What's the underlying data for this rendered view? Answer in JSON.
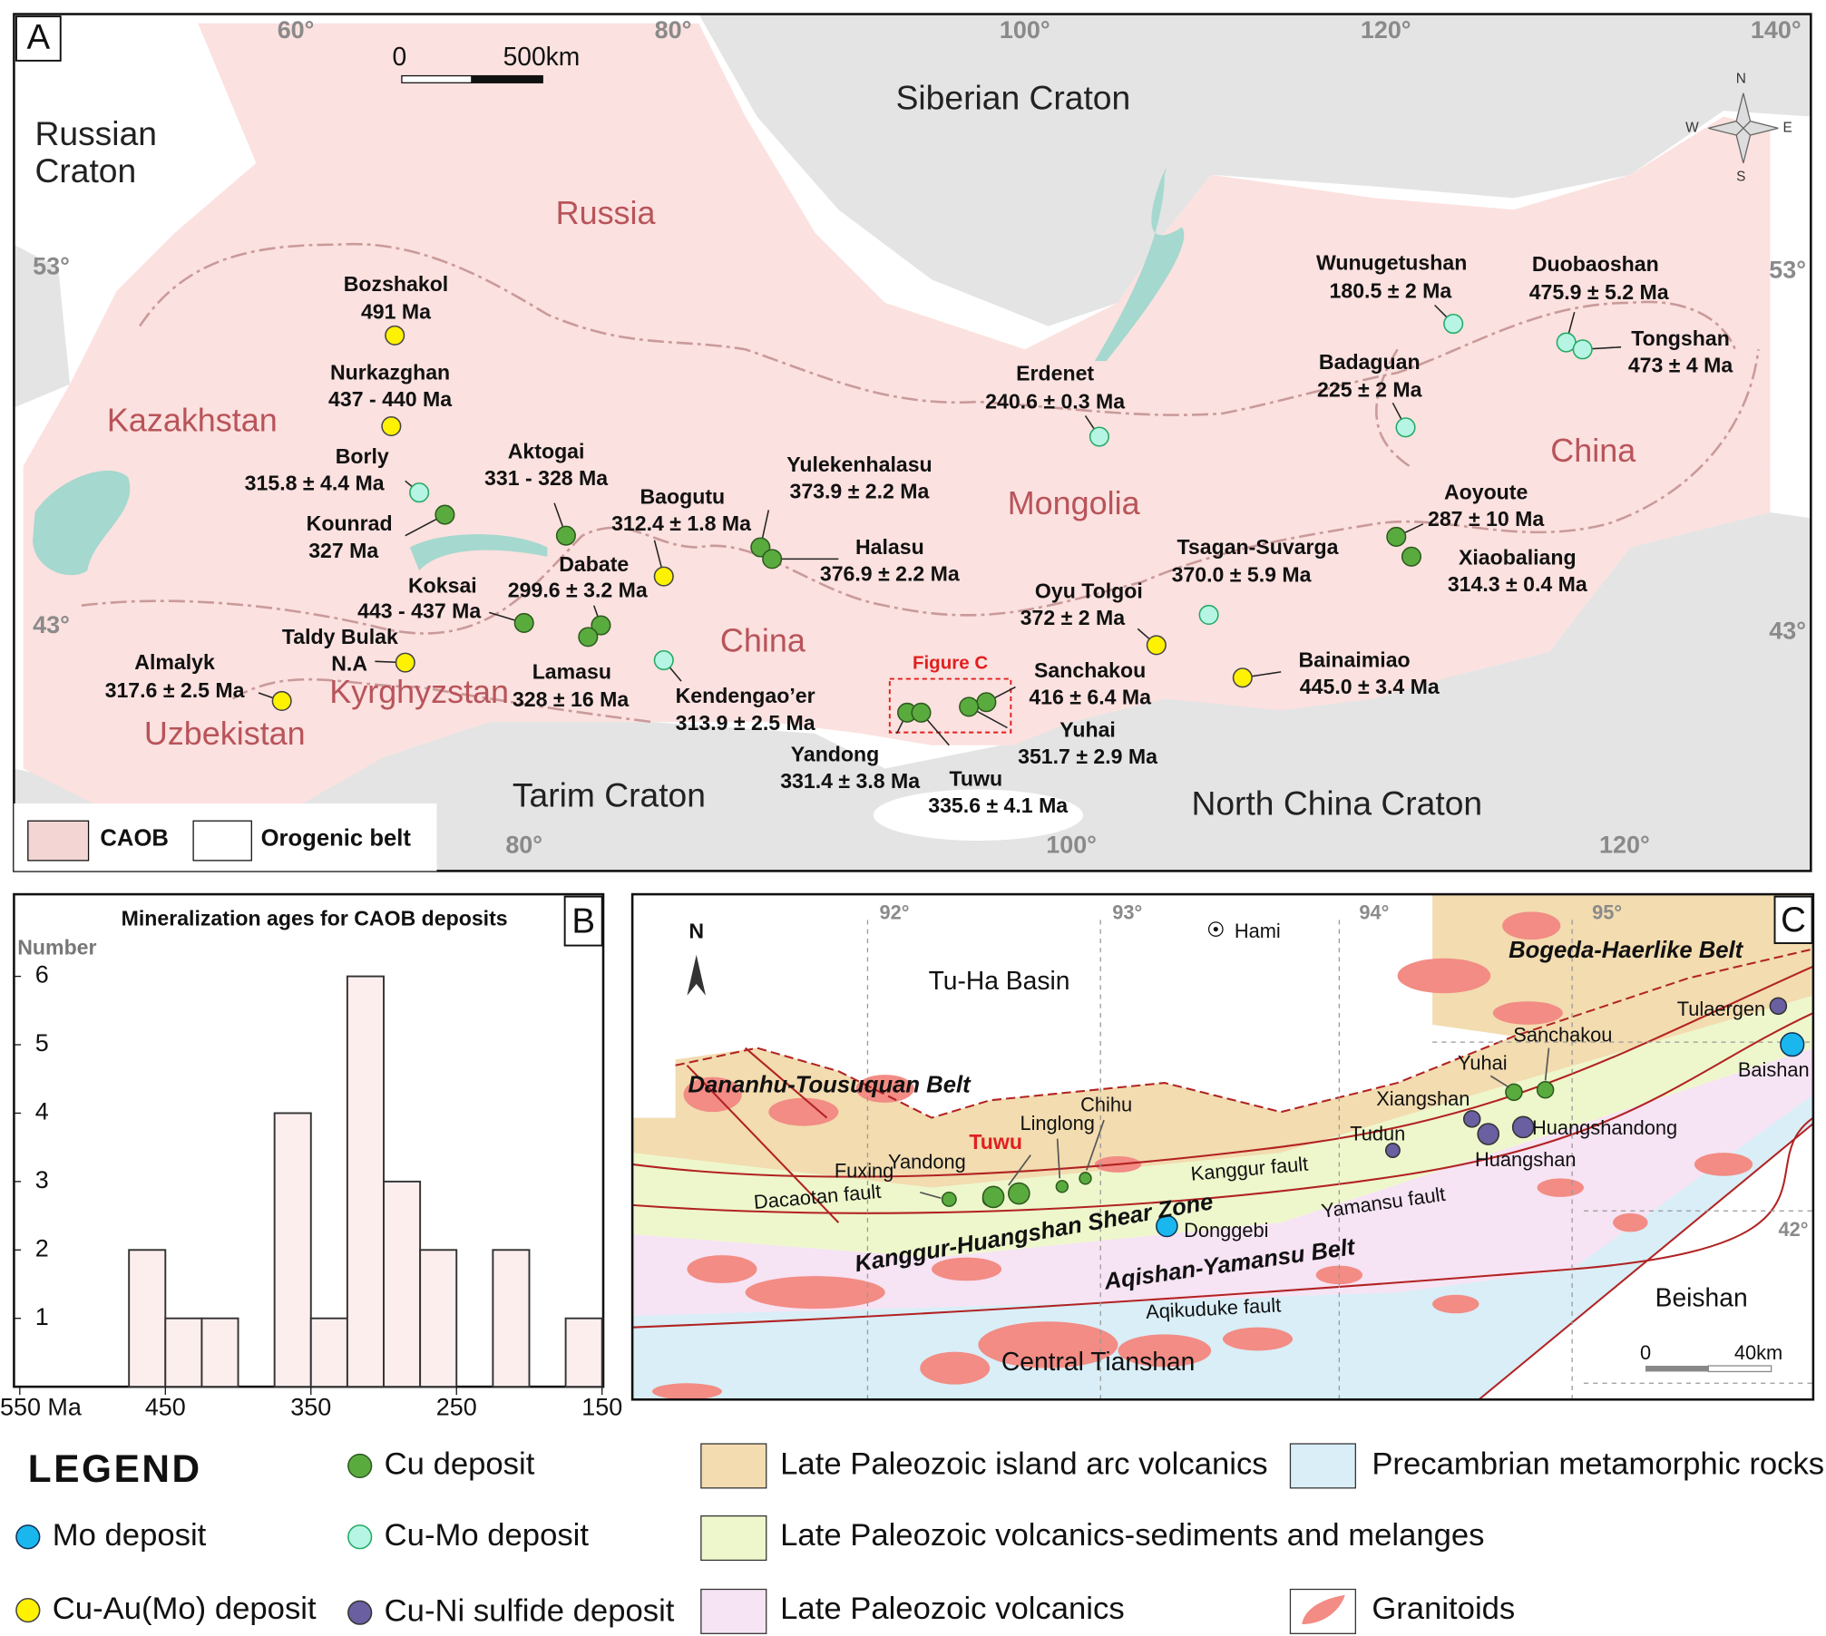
{
  "panel_a": {
    "letter": "A",
    "scale": [
      "0",
      "500km"
    ],
    "lon_top": [
      "60°",
      "80°",
      "100°",
      "120°",
      "140°"
    ],
    "lon_bottom": [
      "80°",
      "100°",
      "120°"
    ],
    "lat_left": [
      "53°",
      "43°"
    ],
    "lat_right": [
      "53°",
      "43°"
    ],
    "compass": [
      "N",
      "W",
      "E",
      "S"
    ],
    "siberian_craton": "Siberian Craton",
    "russian_craton": [
      "Russian",
      "Craton"
    ],
    "regions": [
      "Russia",
      "Kazakhstan",
      "Mongolia",
      "China",
      "China",
      "Kyrghyzstan",
      "Uzbekistan"
    ],
    "cratons": [
      "Tarim Craton",
      "North China Craton"
    ],
    "figure_c": "Figure C",
    "deposits": [
      {
        "name": "Bozshakol",
        "age": "491 Ma"
      },
      {
        "name": "Nurkazghan",
        "age": "437 - 440 Ma"
      },
      {
        "name": "Borly",
        "age": "315.8 ± 4.4 Ma"
      },
      {
        "name": "Kounrad",
        "age": "327 Ma"
      },
      {
        "name": "Aktogai",
        "age": "331 - 328 Ma"
      },
      {
        "name": "Baogutu",
        "age": "312.4 ± 1.8 Ma"
      },
      {
        "name": "Dabate",
        "age": "299.6 ± 3.2 Ma"
      },
      {
        "name": "Koksai",
        "age": "443 - 437 Ma"
      },
      {
        "name": "Taldy Bulak",
        "age": "N.A"
      },
      {
        "name": "Almalyk",
        "age": "317.6 ± 2.5 Ma"
      },
      {
        "name": "Lamasu",
        "age": "328 ± 16 Ma"
      },
      {
        "name": "Kendengao’er",
        "age": "313.9 ± 2.5 Ma"
      },
      {
        "name": "Yulekenhalasu",
        "age": "373.9 ± 2.2 Ma"
      },
      {
        "name": "Halasu",
        "age": "376.9 ± 2.2 Ma"
      },
      {
        "name": "Erdenet",
        "age": "240.6 ± 0.3 Ma"
      },
      {
        "name": "Wunugetushan",
        "age": "180.5 ± 2 Ma"
      },
      {
        "name": "Duobaoshan",
        "age": "475.9 ± 5.2 Ma"
      },
      {
        "name": "Tongshan",
        "age": "473 ± 4 Ma"
      },
      {
        "name": "Badaguan",
        "age": "225 ± 2 Ma"
      },
      {
        "name": "Aoyoute",
        "age": "287 ± 10 Ma"
      },
      {
        "name": "Xiaobaliang",
        "age": "314.3 ± 0.4 Ma"
      },
      {
        "name": "Tsagan-Suvarga",
        "age": "370.0 ± 5.9 Ma"
      },
      {
        "name": "Oyu Tolgoi",
        "age": "372 ± 2 Ma"
      },
      {
        "name": "Bainaimiao",
        "age": "445.0 ± 3.4 Ma"
      },
      {
        "name": "Sanchakou",
        "age": "416 ± 6.4 Ma"
      },
      {
        "name": "Yuhai",
        "age": "351.7 ± 2.9 Ma"
      },
      {
        "name": "Yandong",
        "age": "331.4 ± 3.8 Ma"
      },
      {
        "name": "Tuwu",
        "age": "335.6 ± 4.1 Ma"
      }
    ],
    "legend": [
      "CAOB",
      "Orogenic belt"
    ]
  },
  "chart_data": {
    "type": "histogram",
    "letter": "B",
    "title": "Mineralization ages for CAOB deposits",
    "y_label": "Number",
    "bins": [
      475,
      450,
      425,
      400,
      375,
      350,
      325,
      300,
      275,
      250,
      225,
      200,
      175,
      150
    ],
    "counts": [
      2,
      1,
      1,
      0,
      4,
      1,
      6,
      3,
      2,
      0,
      2,
      0,
      1
    ],
    "color": "#fdeeee",
    "xlim": [
      550,
      150
    ],
    "xticks": [
      {
        "value": 550,
        "label": "550 Ma"
      },
      450,
      350,
      250,
      150
    ],
    "ylim": [
      0,
      7.2
    ],
    "yticks": [
      1,
      2,
      3,
      4,
      5,
      6
    ]
  },
  "panel_c": {
    "letter": "C",
    "lon": [
      "92°",
      "93°",
      "94°",
      "95°"
    ],
    "lat": [
      "42°"
    ],
    "north": "N",
    "places": [
      "Hami",
      "Tu-Ha Basin",
      "Bogeda-Haerlike Belt",
      "Dananhu-Tousuquan Belt",
      "Tuwu",
      "Yandong",
      "Fuxing",
      "Linglong",
      "Chihu",
      "Kanggur fault",
      "Dacaotan fault",
      "Kanggur-Huangshan Shear Zone",
      "Donggebi",
      "Yamansu fault",
      "Aqishan-Yamansu Belt",
      "Aqikuduke fault",
      "Central Tianshan",
      "Beishan",
      "Tudun",
      "Xiangshan",
      "Yuhai",
      "Sanchakou",
      "Huangshan",
      "Huangshandong",
      "Tulaergen",
      "Baishan"
    ],
    "scale": [
      "0",
      "40km"
    ]
  },
  "legend": {
    "title": "LEGEND",
    "deposits": [
      "Cu deposit",
      "Mo deposit",
      "Cu-Mo deposit",
      "Cu-Au(Mo) deposit",
      "Cu-Ni sulfide deposit"
    ],
    "units": [
      "Late Paleozoic island arc volcanics",
      "Late Paleozoic volcanics-sediments and melanges",
      "Late Paleozoic volcanics",
      "Precambrian metamorphic rocks",
      "Granitoids"
    ]
  }
}
